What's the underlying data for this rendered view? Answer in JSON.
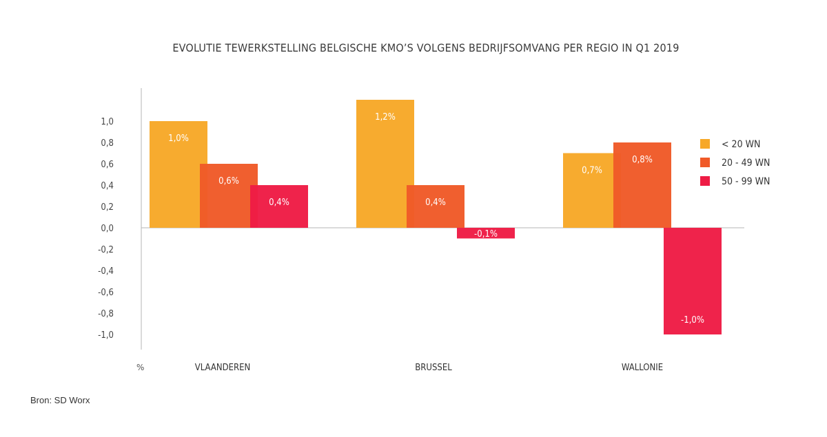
{
  "chart_data": {
    "type": "bar",
    "title": "EVOLUTIE TEWERKSTELLING BELGISCHE KMO’S VOLGENS BEDRIJFSOMVANG PER REGIO IN Q1 2019",
    "ylabel": "%",
    "ylim": [
      -1.0,
      1.2
    ],
    "yticks": [
      "1,0",
      "0,8",
      "0,6",
      "0,4",
      "0,2",
      "0,0",
      "-0,2",
      "-0,4",
      "-0,6",
      "-0,8",
      "-1,0"
    ],
    "categories": [
      "VLAANDEREN",
      "BRUSSEL",
      "WALLONIE"
    ],
    "series": [
      {
        "name": "< 20 WN",
        "values": [
          1.0,
          1.2,
          0.7
        ],
        "labels": [
          "1,0%",
          "1,2%",
          "0,7%"
        ],
        "color": "#f7a828"
      },
      {
        "name": "20 - 49 WN",
        "values": [
          0.6,
          0.4,
          0.8
        ],
        "labels": [
          "0,6%",
          "0,4%",
          "0,8%"
        ],
        "color": "#f05a28"
      },
      {
        "name": "50 - 99 WN",
        "values": [
          0.4,
          -0.1,
          -1.0
        ],
        "labels": [
          "0,4%",
          "-0,1%",
          "-1,0%"
        ],
        "color": "#ee1c45"
      }
    ],
    "legend_position": "right",
    "grid": false
  },
  "source": "Bron: SD Worx"
}
